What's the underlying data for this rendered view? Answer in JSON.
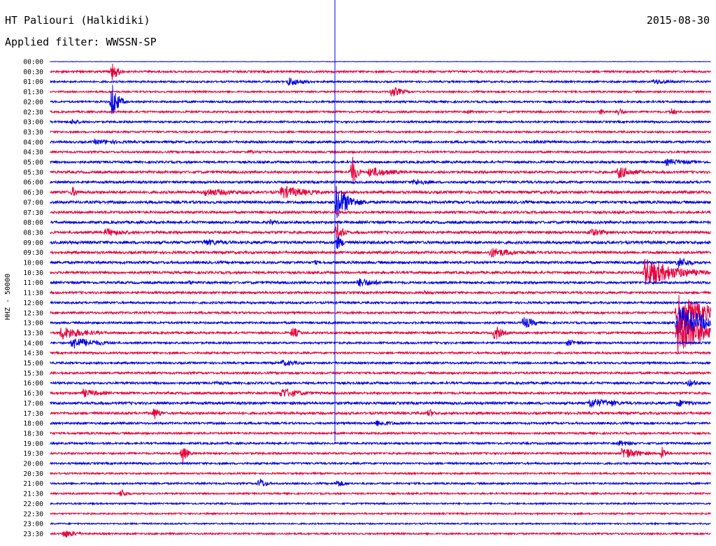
{
  "header": {
    "station": "HT Paliouri (Halkidiki)",
    "date": "2015-08-30",
    "filter": "Applied filter: WWSSN-SP"
  },
  "chart_data": {
    "type": "line",
    "title": "HT Paliouri (Halkidiki)",
    "subtitle": "Applied filter: WWSSN-SP",
    "ylabel": "HHZ - 50000",
    "colors": [
      "#0000e6",
      "#e6003c"
    ],
    "row_labels": [
      "00:00",
      "00:30",
      "01:00",
      "01:30",
      "02:00",
      "02:30",
      "03:00",
      "03:30",
      "04:00",
      "04:30",
      "05:00",
      "05:30",
      "06:00",
      "06:30",
      "07:00",
      "07:30",
      "08:00",
      "08:30",
      "09:00",
      "09:30",
      "10:00",
      "10:30",
      "11:00",
      "11:30",
      "12:00",
      "12:30",
      "13:00",
      "13:30",
      "14:00",
      "14:30",
      "15:00",
      "15:30",
      "16:00",
      "16:30",
      "17:00",
      "17:30",
      "18:00",
      "18:30",
      "19:00",
      "19:30",
      "20:00",
      "20:30",
      "21:00",
      "21:30",
      "22:00",
      "22:30",
      "23:00",
      "23:30"
    ],
    "row_minutes": 30,
    "noise_level": [
      0.3,
      1.4,
      1.3,
      1.2,
      1.4,
      1.3,
      1.4,
      1.3,
      1.6,
      1.4,
      1.6,
      1.7,
      1.7,
      1.9,
      1.9,
      1.7,
      1.8,
      1.8,
      2.0,
      1.8,
      1.8,
      1.7,
      1.7,
      1.6,
      1.5,
      1.5,
      1.5,
      1.5,
      1.4,
      1.4,
      1.5,
      1.5,
      1.6,
      1.6,
      1.8,
      1.7,
      1.5,
      1.4,
      1.4,
      1.4,
      1.4,
      1.2,
      1.3,
      1.2,
      1.1,
      1.1,
      1.0,
      1.2
    ],
    "events": [
      {
        "row": 1,
        "minute": 2.8,
        "amp": 14,
        "dur": 0.3
      },
      {
        "row": 2,
        "minute": 10.8,
        "amp": 7,
        "dur": 0.8
      },
      {
        "row": 2,
        "minute": 27.4,
        "amp": 4,
        "dur": 1.4
      },
      {
        "row": 3,
        "minute": 15.5,
        "amp": 9,
        "dur": 0.5
      },
      {
        "row": 4,
        "minute": 2.8,
        "amp": 30,
        "dur": 0.25
      },
      {
        "row": 4,
        "minute": 15.0,
        "amp": 3,
        "dur": 0.6
      },
      {
        "row": 5,
        "minute": 19.0,
        "amp": 4,
        "dur": 0.3
      },
      {
        "row": 5,
        "minute": 25.0,
        "amp": 5,
        "dur": 0.3
      },
      {
        "row": 5,
        "minute": 25.8,
        "amp": 7,
        "dur": 0.3
      },
      {
        "row": 5,
        "minute": 28.2,
        "amp": 6,
        "dur": 0.3
      },
      {
        "row": 6,
        "minute": 1.0,
        "amp": 5,
        "dur": 0.4
      },
      {
        "row": 8,
        "minute": 2.0,
        "amp": 4,
        "dur": 2.0
      },
      {
        "row": 8,
        "minute": 22.0,
        "amp": 3,
        "dur": 1.5
      },
      {
        "row": 9,
        "minute": 9.0,
        "amp": 3,
        "dur": 1.0
      },
      {
        "row": 10,
        "minute": 28.0,
        "amp": 5,
        "dur": 1.5
      },
      {
        "row": 11,
        "minute": 13.7,
        "amp": 26,
        "dur": 0.2
      },
      {
        "row": 11,
        "minute": 14.5,
        "amp": 8,
        "dur": 1.2
      },
      {
        "row": 11,
        "minute": 25.8,
        "amp": 10,
        "dur": 0.8
      },
      {
        "row": 12,
        "minute": 16.5,
        "amp": 5,
        "dur": 1.0
      },
      {
        "row": 13,
        "minute": 1.0,
        "amp": 8,
        "dur": 0.3
      },
      {
        "row": 13,
        "minute": 7.0,
        "amp": 6,
        "dur": 2.0
      },
      {
        "row": 13,
        "minute": 10.5,
        "amp": 10,
        "dur": 1.3
      },
      {
        "row": 14,
        "minute": 13.0,
        "amp": 26,
        "dur": 0.6
      },
      {
        "row": 15,
        "minute": 13.0,
        "amp": 4,
        "dur": 0.4
      },
      {
        "row": 16,
        "minute": 10.0,
        "amp": 5,
        "dur": 0.4
      },
      {
        "row": 17,
        "minute": 2.5,
        "amp": 6,
        "dur": 1.2
      },
      {
        "row": 17,
        "minute": 13.0,
        "amp": 16,
        "dur": 0.3
      },
      {
        "row": 17,
        "minute": 24.5,
        "amp": 6,
        "dur": 1.0
      },
      {
        "row": 18,
        "minute": 7.0,
        "amp": 5,
        "dur": 1.5
      },
      {
        "row": 18,
        "minute": 13.0,
        "amp": 12,
        "dur": 0.3
      },
      {
        "row": 19,
        "minute": 20.0,
        "amp": 8,
        "dur": 1.2
      },
      {
        "row": 20,
        "minute": 12.0,
        "amp": 4,
        "dur": 0.3
      },
      {
        "row": 20,
        "minute": 28.5,
        "amp": 9,
        "dur": 0.6
      },
      {
        "row": 21,
        "minute": 27.0,
        "amp": 22,
        "dur": 1.4
      },
      {
        "row": 22,
        "minute": 6.3,
        "amp": 4,
        "dur": 0.3
      },
      {
        "row": 22,
        "minute": 14.0,
        "amp": 7,
        "dur": 1.0
      },
      {
        "row": 23,
        "minute": 17.0,
        "amp": 3,
        "dur": 0.8
      },
      {
        "row": 25,
        "minute": 28.5,
        "amp": 28,
        "dur": 1.4
      },
      {
        "row": 26,
        "minute": 21.5,
        "amp": 10,
        "dur": 0.5
      },
      {
        "row": 26,
        "minute": 28.5,
        "amp": 28,
        "dur": 1.3
      },
      {
        "row": 27,
        "minute": 0.5,
        "amp": 10,
        "dur": 1.2
      },
      {
        "row": 27,
        "minute": 11.0,
        "amp": 10,
        "dur": 0.3
      },
      {
        "row": 27,
        "minute": 20.2,
        "amp": 14,
        "dur": 0.3
      },
      {
        "row": 27,
        "minute": 28.5,
        "amp": 30,
        "dur": 1.3
      },
      {
        "row": 28,
        "minute": 1.0,
        "amp": 9,
        "dur": 1.2
      },
      {
        "row": 28,
        "minute": 23.5,
        "amp": 5,
        "dur": 0.8
      },
      {
        "row": 29,
        "minute": 20.5,
        "amp": 3,
        "dur": 0.5
      },
      {
        "row": 30,
        "minute": 10.5,
        "amp": 5,
        "dur": 1.0
      },
      {
        "row": 32,
        "minute": 7.5,
        "amp": 3,
        "dur": 0.8
      },
      {
        "row": 32,
        "minute": 29.0,
        "amp": 6,
        "dur": 0.6
      },
      {
        "row": 33,
        "minute": 1.5,
        "amp": 6,
        "dur": 1.0
      },
      {
        "row": 33,
        "minute": 10.5,
        "amp": 8,
        "dur": 1.0
      },
      {
        "row": 34,
        "minute": 24.5,
        "amp": 8,
        "dur": 1.2
      },
      {
        "row": 34,
        "minute": 25.5,
        "amp": 6,
        "dur": 0.3
      },
      {
        "row": 34,
        "minute": 28.5,
        "amp": 6,
        "dur": 0.8
      },
      {
        "row": 35,
        "minute": 4.7,
        "amp": 10,
        "dur": 0.3
      },
      {
        "row": 35,
        "minute": 17.2,
        "amp": 7,
        "dur": 0.3
      },
      {
        "row": 36,
        "minute": 14.8,
        "amp": 5,
        "dur": 1.0
      },
      {
        "row": 38,
        "minute": 25.8,
        "amp": 5,
        "dur": 0.8
      },
      {
        "row": 39,
        "minute": 6.0,
        "amp": 16,
        "dur": 0.2
      },
      {
        "row": 39,
        "minute": 26.0,
        "amp": 10,
        "dur": 0.8
      },
      {
        "row": 39,
        "minute": 27.8,
        "amp": 11,
        "dur": 0.2
      },
      {
        "row": 42,
        "minute": 9.5,
        "amp": 9,
        "dur": 0.3
      },
      {
        "row": 42,
        "minute": 13.0,
        "amp": 6,
        "dur": 0.5
      },
      {
        "row": 43,
        "minute": 3.2,
        "amp": 7,
        "dur": 0.3
      },
      {
        "row": 47,
        "minute": 0.6,
        "amp": 7,
        "dur": 0.6
      }
    ]
  }
}
